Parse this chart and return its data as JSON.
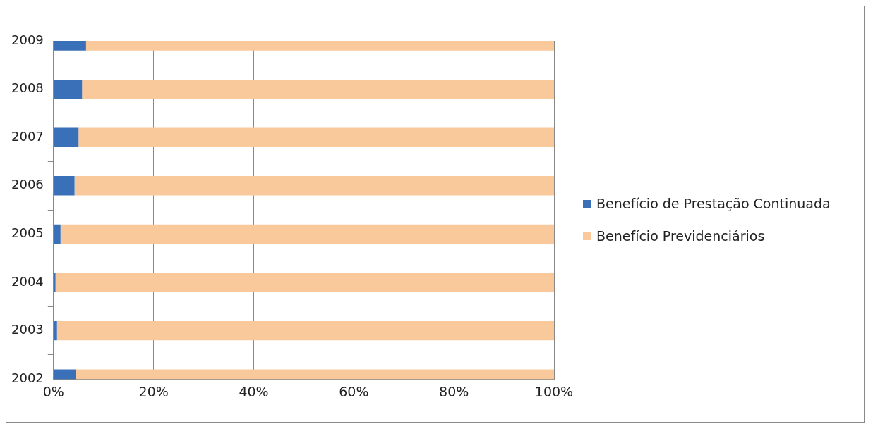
{
  "chart_data": {
    "type": "bar",
    "orientation": "horizontal",
    "stacked": true,
    "categories": [
      "2009",
      "2008",
      "2007",
      "2006",
      "2005",
      "2004",
      "2003",
      "2002"
    ],
    "series": [
      {
        "name": "Benefício de Prestação Continuada",
        "color": "#3a70b8",
        "values": [
          6.5,
          5.7,
          5.0,
          4.2,
          1.4,
          0.4,
          0.7,
          4.5
        ]
      },
      {
        "name": "Benefício Previdenciários",
        "color": "#f9c99b",
        "values": [
          93.5,
          94.3,
          95.0,
          95.8,
          98.6,
          99.6,
          99.3,
          95.5
        ]
      }
    ],
    "xlim": [
      0,
      100
    ],
    "xticks": [
      {
        "value": 0,
        "label": "0%"
      },
      {
        "value": 20,
        "label": "20%"
      },
      {
        "value": 40,
        "label": "40%"
      },
      {
        "value": 60,
        "label": "60%"
      },
      {
        "value": 80,
        "label": "80%"
      },
      {
        "value": 100,
        "label": "100%"
      }
    ],
    "grid": "x",
    "legend": "right"
  }
}
